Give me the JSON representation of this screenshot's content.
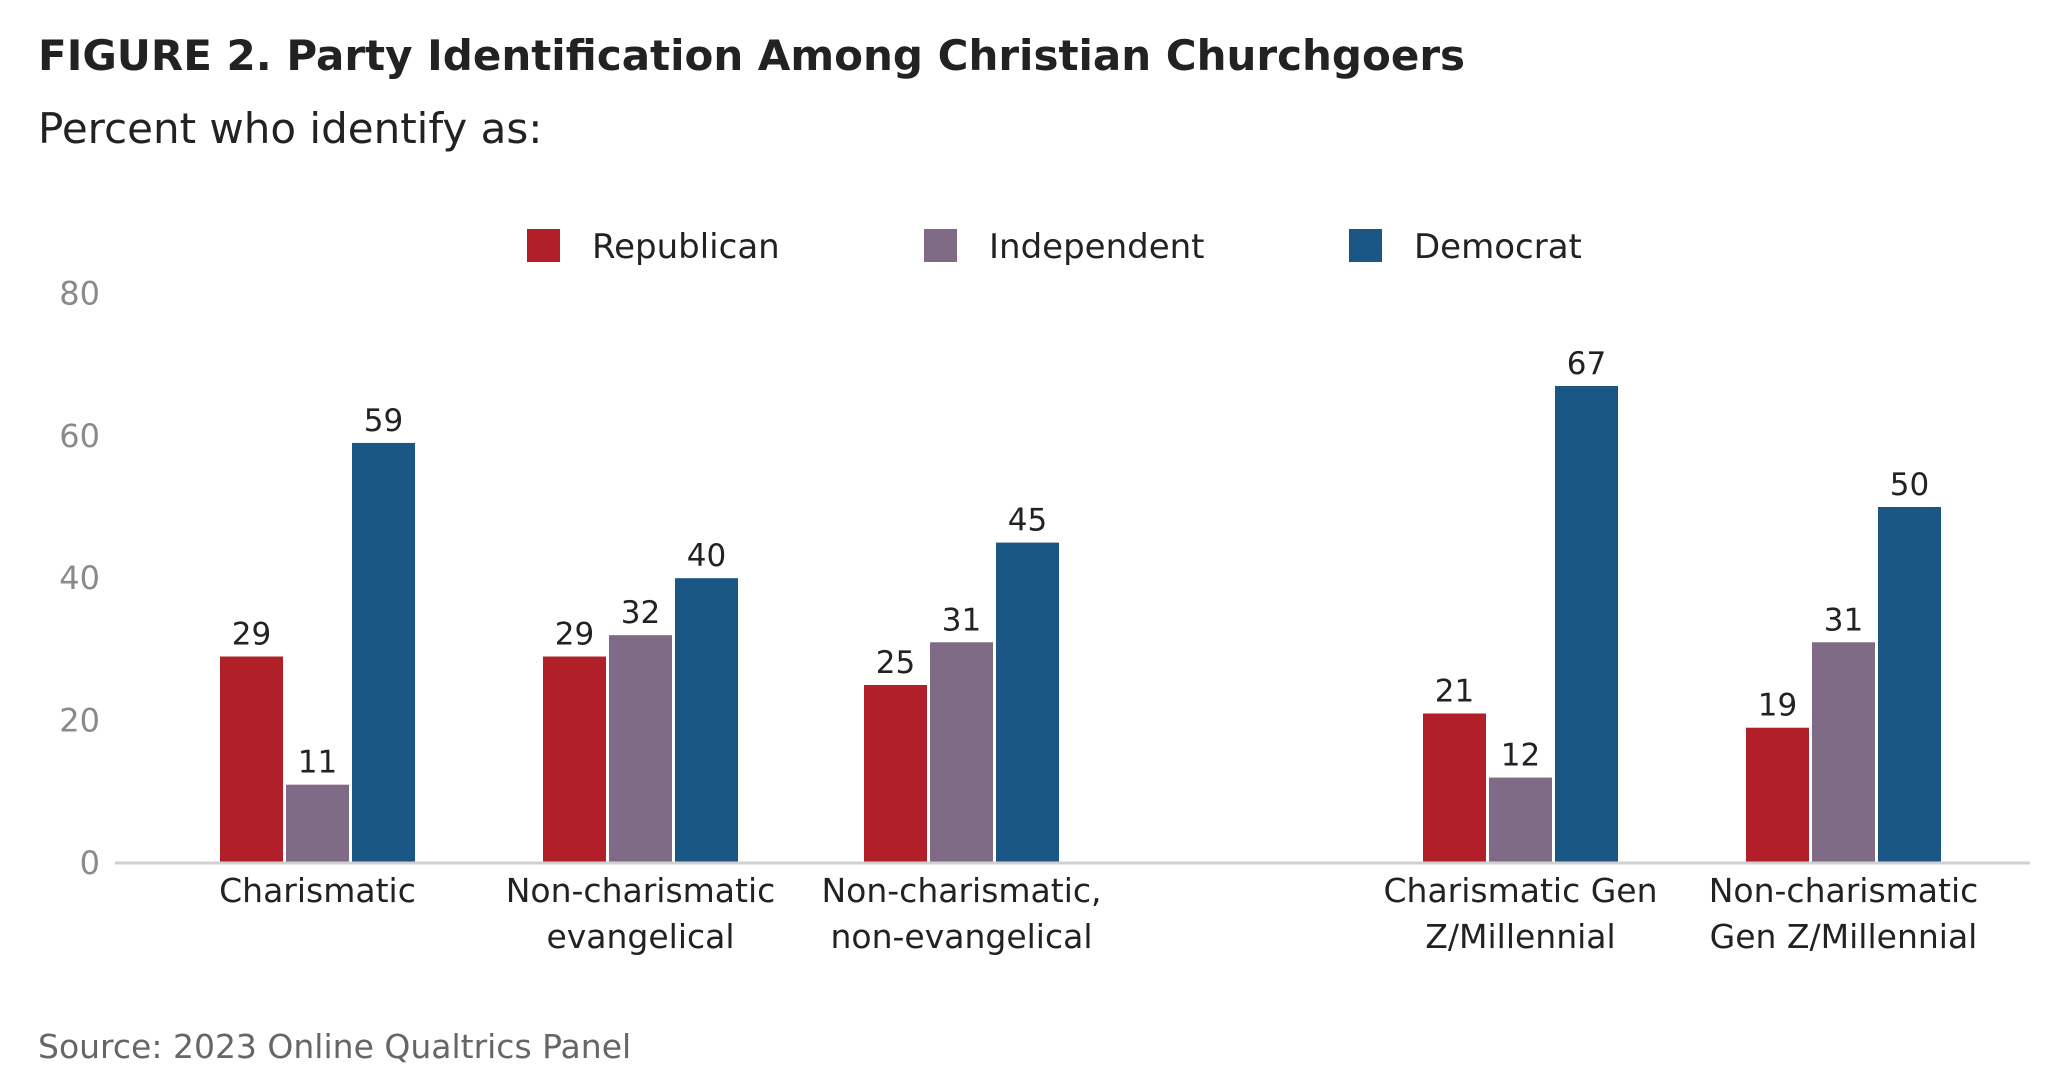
{
  "title": "FIGURE 2. Party Identification Among Christian Churchgoers",
  "subtitle": "Percent who identify as:",
  "source": "Source: 2023 Online Qualtrics Panel",
  "chart_data": {
    "type": "bar",
    "categories": [
      [
        "Charismatic"
      ],
      [
        "Non-charismatic",
        "evangelical"
      ],
      [
        "Non-charismatic,",
        "non-evangelical"
      ],
      [
        "Charismatic Gen",
        "Z/Millennial"
      ],
      [
        "Non-charismatic",
        "Gen Z/Millennial"
      ]
    ],
    "series": [
      {
        "name": "Republican",
        "color": "#b12028",
        "values": [
          29,
          29,
          25,
          21,
          19
        ]
      },
      {
        "name": "Independent",
        "color": "#7f6b85",
        "values": [
          11,
          32,
          31,
          12,
          31
        ]
      },
      {
        "name": "Democrat",
        "color": "#1a5785",
        "values": [
          59,
          40,
          45,
          67,
          50
        ]
      }
    ],
    "ylim": [
      0,
      80
    ],
    "yticks": [
      0,
      20,
      40,
      60,
      80
    ],
    "grid": false,
    "legend": "top-center"
  }
}
